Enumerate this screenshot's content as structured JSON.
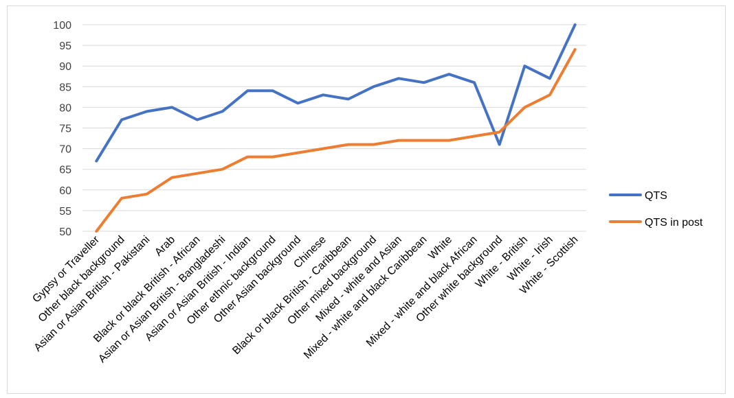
{
  "chart_data": {
    "type": "line",
    "title": "",
    "xlabel": "",
    "ylabel": "",
    "ylim": [
      50,
      100
    ],
    "ytick_step": 5,
    "grid": true,
    "legend_position": "right",
    "categories": [
      "Gypsy or Traveller",
      "Other black background",
      "Asian or Asian British - Pakistani",
      "Arab",
      "Black or black British - African",
      "Asian or Asian British - Bangladeshi",
      "Asian or Asian British - Indian",
      "Other ethnic background",
      "Other Asian background",
      "Chinese",
      "Black or black British - Caribbean",
      "Other mixed background",
      "Mixed - white and Asian",
      "Mixed - white and black Caribbean",
      "White",
      "Mixed - white and black African",
      "Other white background",
      "White - British",
      "White - Irish",
      "White - Scottish"
    ],
    "series": [
      {
        "name": "QTS",
        "color": "#4472c4",
        "values": [
          67,
          77,
          79,
          80,
          77,
          79,
          84,
          84,
          81,
          83,
          82,
          85,
          87,
          86,
          88,
          86,
          71,
          90,
          87,
          100
        ]
      },
      {
        "name": "QTS in post",
        "color": "#ed7d31",
        "values": [
          50,
          58,
          59,
          63,
          64,
          65,
          68,
          68,
          69,
          70,
          71,
          71,
          72,
          72,
          72,
          73,
          74,
          80,
          83,
          94
        ]
      }
    ]
  }
}
